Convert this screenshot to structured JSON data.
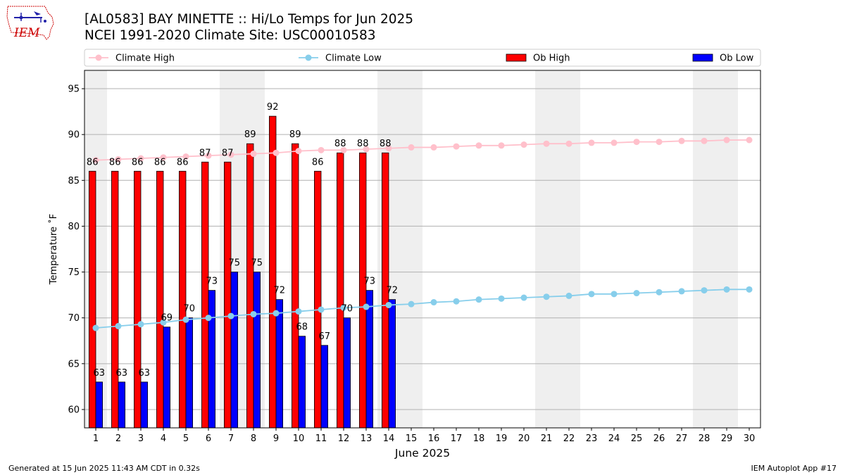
{
  "header": {
    "title_line1": "[AL0583] BAY MINETTE :: Hi/Lo Temps for Jun 2025",
    "title_line2": "NCEI 1991-2020 Climate Site: USC00010583",
    "logo_text": "IEM"
  },
  "footer": {
    "generated": "Generated at 15 Jun 2025 11:43 AM CDT in 0.32s",
    "app": "IEM Autoplot App #17"
  },
  "colors": {
    "ob_high": "#ff0000",
    "ob_low": "#0000ff",
    "climate_high": "#ffc0cb",
    "climate_low": "#87ceeb",
    "weekend_band": "#efefef",
    "grid": "#b0b0b0"
  },
  "chart_data": {
    "type": "bar",
    "xlabel": "June 2025",
    "ylabel": "Temperature $^\\circ$F",
    "ylabel_display": "Temperature ˚F",
    "xlim": [
      0.5,
      30.5
    ],
    "ylim": [
      58,
      97
    ],
    "yticks": [
      60,
      65,
      70,
      75,
      80,
      85,
      90,
      95
    ],
    "grid": "horizontal",
    "legend_placement": "top, above plot",
    "legend": [
      "Climate High",
      "Climate Low",
      "Ob High",
      "Ob Low"
    ],
    "days": [
      1,
      2,
      3,
      4,
      5,
      6,
      7,
      8,
      9,
      10,
      11,
      12,
      13,
      14,
      15,
      16,
      17,
      18,
      19,
      20,
      21,
      22,
      23,
      24,
      25,
      26,
      27,
      28,
      29,
      30
    ],
    "weekend_bands": [
      [
        1,
        1
      ],
      [
        7,
        8
      ],
      [
        14,
        15
      ],
      [
        21,
        22
      ],
      [
        28,
        29
      ]
    ],
    "series": [
      {
        "name": "Ob High",
        "kind": "bar",
        "days": [
          1,
          2,
          3,
          4,
          5,
          6,
          7,
          8,
          9,
          10,
          11,
          12,
          13,
          14
        ],
        "values": [
          86,
          86,
          86,
          86,
          86,
          87,
          87,
          89,
          92,
          89,
          86,
          88,
          88,
          88
        ]
      },
      {
        "name": "Ob Low",
        "kind": "bar",
        "days": [
          1,
          2,
          3,
          4,
          5,
          6,
          7,
          8,
          9,
          10,
          11,
          12,
          13,
          14
        ],
        "values": [
          63,
          63,
          63,
          69,
          70,
          73,
          75,
          75,
          72,
          68,
          67,
          70,
          73,
          72
        ]
      },
      {
        "name": "Climate High",
        "kind": "line",
        "values": [
          87.2,
          87.3,
          87.4,
          87.5,
          87.6,
          87.7,
          87.8,
          87.9,
          88.0,
          88.2,
          88.3,
          88.3,
          88.4,
          88.5,
          88.6,
          88.6,
          88.7,
          88.8,
          88.8,
          88.9,
          89.0,
          89.0,
          89.1,
          89.1,
          89.2,
          89.2,
          89.3,
          89.3,
          89.4,
          89.4
        ]
      },
      {
        "name": "Climate Low",
        "kind": "line",
        "values": [
          68.9,
          69.1,
          69.3,
          69.5,
          69.8,
          70.0,
          70.2,
          70.4,
          70.5,
          70.7,
          70.9,
          71.1,
          71.2,
          71.4,
          71.5,
          71.7,
          71.8,
          72.0,
          72.1,
          72.2,
          72.3,
          72.4,
          72.6,
          72.6,
          72.7,
          72.8,
          72.9,
          73.0,
          73.1,
          73.1
        ]
      }
    ]
  }
}
